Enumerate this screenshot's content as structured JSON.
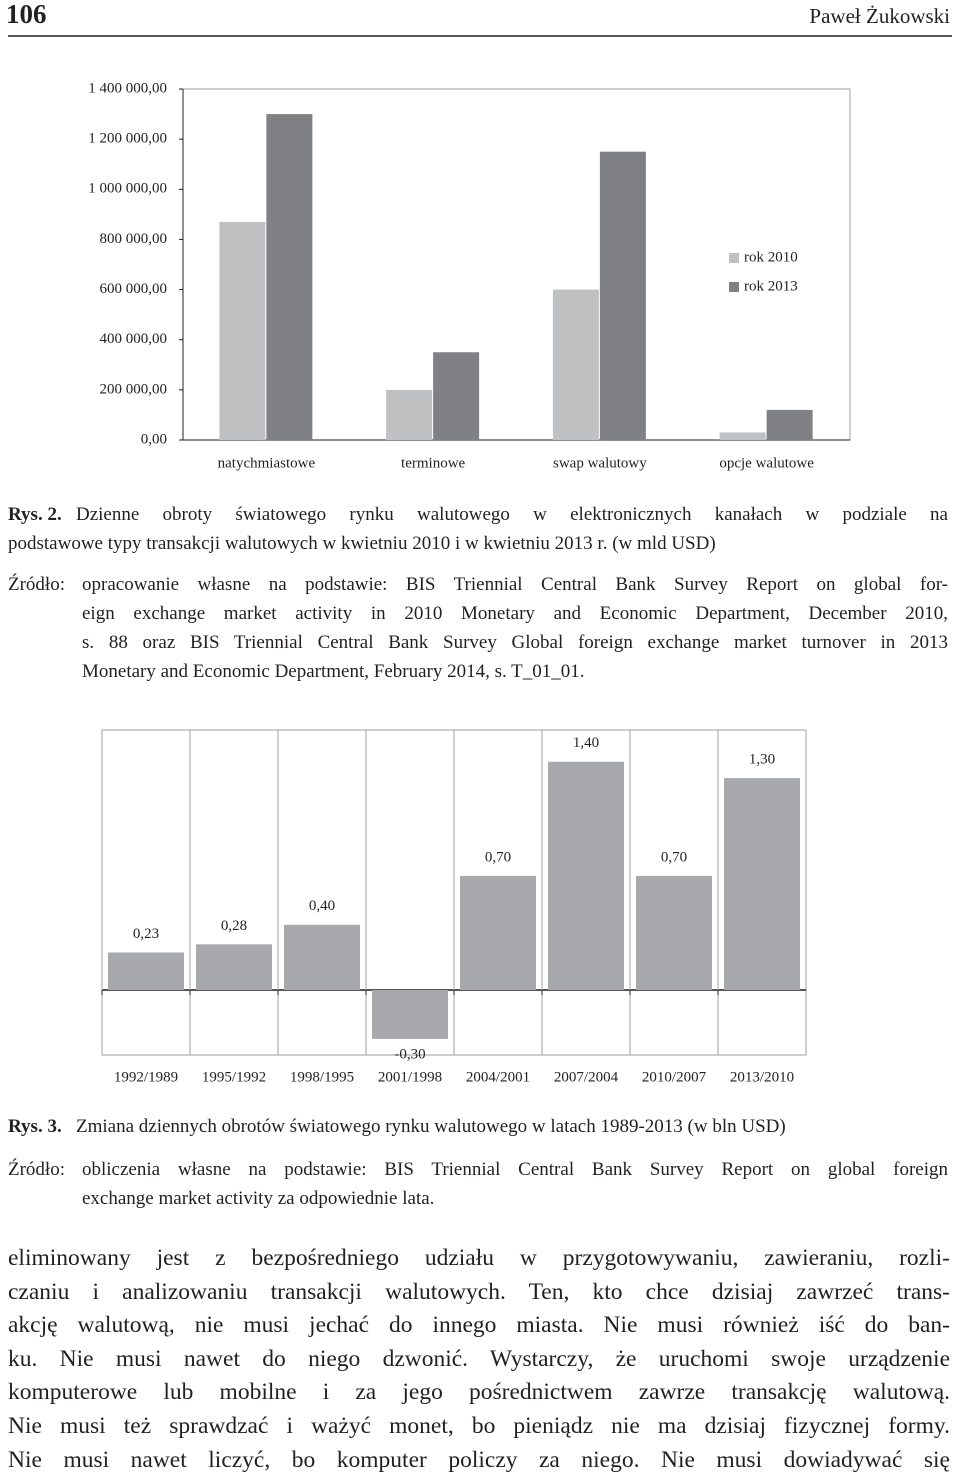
{
  "header": {
    "page": "106",
    "author": "Paweł Żukowski"
  },
  "chart_data": [
    {
      "type": "bar",
      "categories": [
        "natychmiastowe",
        "terminowe",
        "swap walutowy",
        "opcje walutowe"
      ],
      "series": [
        {
          "name": "rok 2010",
          "color": "#c0c1c3",
          "values": [
            870000,
            200000,
            600000,
            30000
          ]
        },
        {
          "name": "rok 2013",
          "color": "#808184",
          "values": [
            1300000,
            350000,
            1150000,
            120000
          ]
        }
      ],
      "ylim": [
        0,
        1400000
      ],
      "yticks": [
        {
          "value": 0,
          "label": "0,00"
        },
        {
          "value": 200000,
          "label": "200 000,00"
        },
        {
          "value": 400000,
          "label": "400 000,00"
        },
        {
          "value": 600000,
          "label": "600 000,00"
        },
        {
          "value": 800000,
          "label": "800 000,00"
        },
        {
          "value": 1000000,
          "label": "1 000 000,00"
        },
        {
          "value": 1200000,
          "label": "1 200 000,00"
        },
        {
          "value": 1400000,
          "label": "1 400 000,00"
        }
      ],
      "legend": "right"
    },
    {
      "type": "bar",
      "categories": [
        "1992/1989",
        "1995/1992",
        "1998/1995",
        "2001/1998",
        "2004/2001",
        "2007/2004",
        "2010/2007",
        "2013/2010"
      ],
      "values": [
        0.23,
        0.28,
        0.4,
        -0.3,
        0.7,
        1.4,
        0.7,
        1.3
      ],
      "value_labels": [
        "0,23",
        "0,28",
        "0,40",
        "-0,30",
        "0,70",
        "1,40",
        "0,70",
        "1,30"
      ],
      "color": "#a7a9ac"
    }
  ],
  "figures": [
    {
      "label": "Rys. 2.",
      "caption": [
        "Dzienne obroty światowego rynku walutowego w elektronicznych kanałach w podziale na",
        "podstawowe typy transakcji walutowych w kwietniu 2010 i w kwietniu 2013 r. (w mld USD)"
      ],
      "source_label": "Źródło:",
      "source": [
        "opracowanie własne na podstawie: BIS Triennial Central Bank Survey Report on global for-",
        "eign exchange market activity in 2010 Monetary and Economic Department, December 2010,",
        "s. 88 oraz BIS Triennial Central Bank Survey Global foreign exchange market turnover in 2013",
        "Monetary and Economic Department, February 2014, s. T_01_01."
      ]
    },
    {
      "label": "Rys. 3.",
      "caption": [
        "Zmiana dziennych obrotów światowego rynku walutowego w latach 1989-2013 (w bln USD)"
      ],
      "source_label": "Źródło:",
      "source": [
        "obliczenia własne na podstawie: BIS Triennial Central Bank Survey Report on global foreign",
        "exchange market activity za odpowiednie lata."
      ]
    }
  ],
  "body": [
    "eliminowany jest z bezpośredniego udziału w przygotowywaniu, zawieraniu, rozli-",
    "czaniu i analizowaniu transakcji walutowych. Ten, kto chce dzisiaj zawrzeć trans-",
    "akcję walutową, nie musi jechać do innego miasta. Nie musi również iść do ban-",
    "ku. Nie musi nawet do niego dzwonić. Wystarczy, że uruchomi swoje urządzenie",
    "komputerowe lub mobilne i za jego pośrednictwem zawrze transakcję walutową.",
    "Nie musi też sprawdzać i ważyć monet, bo pieniądz nie ma dzisiaj fizycznej formy.",
    "Nie musi nawet liczyć, bo komputer policzy za niego. Nie musi dowiadywać się"
  ]
}
